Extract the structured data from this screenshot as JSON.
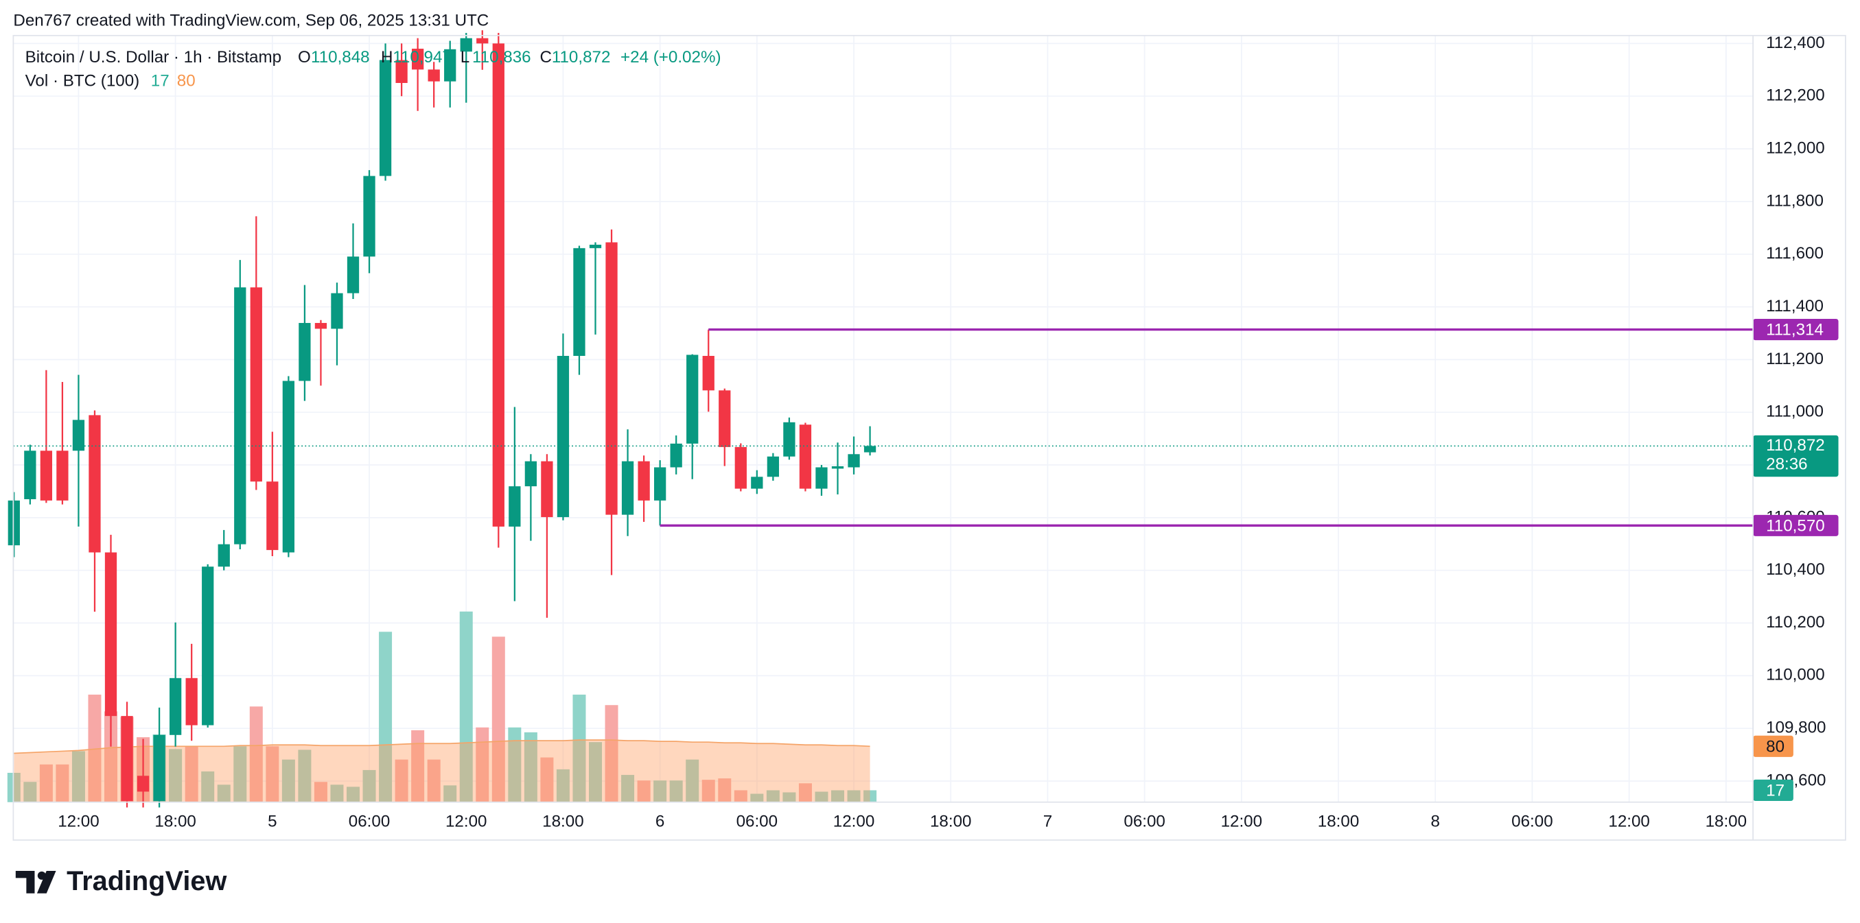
{
  "header": {
    "attribution": "Den767 created with TradingView.com, Sep 06, 2025 13:31 UTC"
  },
  "chart_data": {
    "type": "candlestick",
    "title": "Bitcoin / U.S. Dollar · 1h · Bitstamp",
    "ohlc_letters": [
      "O",
      "H",
      "L",
      "C"
    ],
    "ohlc_values": [
      110848,
      110947,
      110836,
      110872
    ],
    "ohlc_value_labels": [
      "110,848",
      "110,947",
      "110,836",
      "110,872"
    ],
    "change_label": "+24 (+0.02%)",
    "series": [
      {
        "name": "BTCUSD",
        "up_color": "#089981",
        "down_color": "#f23645",
        "open": [
          110495,
          110670,
          110854,
          110854,
          110854,
          110989,
          110468,
          109847,
          109620,
          109524,
          109775,
          109991,
          109812,
          110414,
          110499,
          111474,
          110737,
          110468,
          111119,
          111339,
          111317,
          111452,
          111591,
          111897,
          112337,
          112380,
          112301,
          112256,
          112369,
          112420,
          112400,
          110566,
          110719,
          110814,
          110602,
          111214,
          111623,
          111645,
          110611,
          110814,
          110665,
          110791,
          110881,
          111214,
          111083,
          110868,
          110710,
          110755,
          110832,
          110953,
          110710,
          110786,
          110791,
          110848
        ],
        "high": [
          110697,
          110877,
          111160,
          111115,
          111142,
          111007,
          110535,
          109901,
          109760,
          109879,
          110202,
          110121,
          110423,
          110553,
          111578,
          111744,
          110926,
          111137,
          111483,
          111350,
          111492,
          111717,
          111919,
          112400,
          112400,
          112420,
          112330,
          112410,
          112440,
          112450,
          112440,
          111020,
          110841,
          110841,
          111299,
          111632,
          111645,
          111694,
          110935,
          110836,
          110818,
          110912,
          111220,
          111314,
          111090,
          110882,
          110780,
          110845,
          110980,
          110960,
          110800,
          110885,
          110908,
          110947
        ],
        "low": [
          110450,
          110650,
          110656,
          110650,
          110566,
          110243,
          109731,
          109500,
          109500,
          109500,
          109731,
          109753,
          109803,
          110400,
          110480,
          110705,
          110454,
          110450,
          111043,
          111101,
          111178,
          111430,
          111528,
          111879,
          112200,
          112144,
          112157,
          112157,
          112175,
          112300,
          110486,
          110283,
          110512,
          110220,
          110590,
          111142,
          111295,
          110382,
          110530,
          110584,
          110570,
          110764,
          110746,
          111002,
          110796,
          110700,
          110690,
          110740,
          110820,
          110700,
          110683,
          110688,
          110764,
          110836
        ],
        "close": [
          110665,
          110854,
          110665,
          110665,
          110971,
          110468,
          109847,
          109524,
          109560,
          109775,
          109991,
          109812,
          110414,
          110499,
          111474,
          110737,
          110477,
          111119,
          111339,
          111317,
          111452,
          111591,
          111897,
          112337,
          112250,
          112301,
          112256,
          112378,
          112420,
          112400,
          110566,
          110719,
          110814,
          110602,
          111214,
          111623,
          111636,
          110611,
          110814,
          110665,
          110791,
          110881,
          111218,
          111083,
          110868,
          110710,
          110755,
          110832,
          110962,
          110710,
          110791,
          110795,
          110841,
          110872
        ]
      }
    ],
    "xlim": [
      -0.04,
      107.67
    ],
    "xticks": [
      {
        "value": 4,
        "label": "12:00"
      },
      {
        "value": 10,
        "label": "18:00"
      },
      {
        "value": 16,
        "label": "5"
      },
      {
        "value": 22,
        "label": "06:00"
      },
      {
        "value": 28,
        "label": "12:00"
      },
      {
        "value": 34,
        "label": "18:00"
      },
      {
        "value": 40,
        "label": "6"
      },
      {
        "value": 46,
        "label": "06:00"
      },
      {
        "value": 52,
        "label": "12:00"
      },
      {
        "value": 58,
        "label": "18:00"
      },
      {
        "value": 64,
        "label": "7"
      },
      {
        "value": 70,
        "label": "06:00"
      },
      {
        "value": 76,
        "label": "12:00"
      },
      {
        "value": 82,
        "label": "18:00"
      },
      {
        "value": 88,
        "label": "8"
      },
      {
        "value": 94,
        "label": "06:00"
      },
      {
        "value": 100,
        "label": "12:00"
      },
      {
        "value": 106,
        "label": "18:00"
      }
    ],
    "ylim": [
      109520,
      112430
    ],
    "yticks": [
      {
        "value": 109600,
        "label": "109,600"
      },
      {
        "value": 109800,
        "label": "109,800"
      },
      {
        "value": 110000,
        "label": "110,000"
      },
      {
        "value": 110200,
        "label": "110,200"
      },
      {
        "value": 110400,
        "label": "110,400"
      },
      {
        "value": 110600,
        "label": "110,600"
      },
      {
        "value": 110800,
        "label": "110,800"
      },
      {
        "value": 111000,
        "label": "111,000"
      },
      {
        "value": 111200,
        "label": "111,200"
      },
      {
        "value": 111400,
        "label": "111,400"
      },
      {
        "value": 111600,
        "label": "111,600"
      },
      {
        "value": 111800,
        "label": "111,800"
      },
      {
        "value": 112000,
        "label": "112,000"
      },
      {
        "value": 112200,
        "label": "112,200"
      },
      {
        "value": 112400,
        "label": "112,400"
      }
    ],
    "grid": true,
    "price_lines": [
      {
        "value": 111314,
        "label": "111,314",
        "start": 43,
        "color": "#9c27b0"
      },
      {
        "value": 110570,
        "label": "110,570",
        "start": 40,
        "color": "#9c27b0"
      }
    ],
    "last_price": {
      "value": 110872,
      "label": "110,872",
      "countdown": "28:36",
      "color": "#089981"
    },
    "volume": {
      "title": "Vol · BTC (100)",
      "last": 17,
      "ma_last": 80,
      "ylim": [
        0,
        280
      ],
      "up_color": "#8fd4c9",
      "down_color": "#f7a8a6",
      "ma_color": "#f5a468",
      "ma_fill": "rgba(255,160,100,0.42)",
      "last_color": "#22ab94",
      "ma_label_color": "#f7954b",
      "values": [
        42,
        29,
        54,
        54,
        73,
        154,
        130,
        122,
        93,
        97,
        76,
        80,
        44,
        25,
        80,
        137,
        80,
        61,
        75,
        29,
        25,
        22,
        46,
        244,
        61,
        103,
        61,
        24,
        273,
        107,
        237,
        107,
        100,
        64,
        47,
        154,
        86,
        139,
        39,
        31,
        31,
        31,
        61,
        32,
        34,
        17,
        12,
        17,
        14,
        27,
        15,
        17,
        17,
        17
      ],
      "ma": [
        70,
        71,
        72,
        73,
        74,
        76,
        78,
        79,
        80,
        80,
        80,
        80,
        80,
        80,
        81,
        81,
        82,
        82,
        82,
        81,
        81,
        81,
        81,
        82,
        83,
        84,
        84,
        84,
        85,
        86,
        87,
        88,
        88,
        88,
        88,
        89,
        89,
        89,
        88,
        88,
        87,
        87,
        86,
        86,
        85,
        85,
        84,
        84,
        83,
        82,
        82,
        81,
        81,
        80
      ]
    }
  },
  "footer": {
    "brand": "TradingView"
  }
}
